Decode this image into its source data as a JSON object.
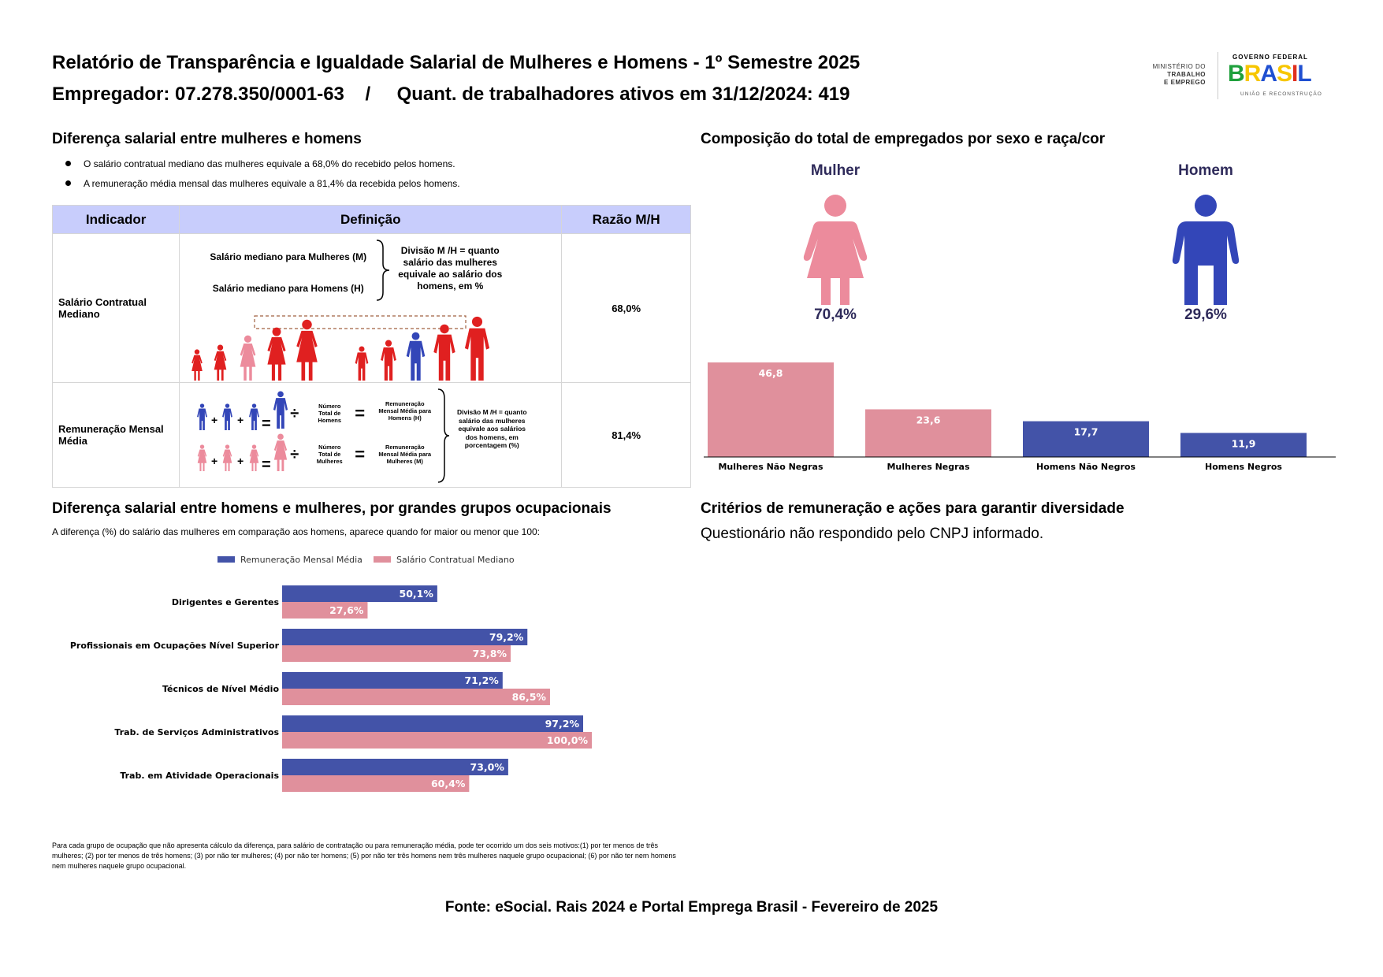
{
  "header": {
    "title": "Relatório de Transparência e Igualdade Salarial de Mulheres e Homens - 1º Semestre 2025",
    "employer": "Empregador: 07.278.350/0001-63    /     Quant. de trabalhadores ativos em 31/12/2024: 419",
    "logo": {
      "ministry_line1": "MINISTÉRIO DO",
      "ministry_line2": "TRABALHO",
      "ministry_line3": "E EMPREGO",
      "gov": "GOVERNO FEDERAL",
      "brand": "BRASIL",
      "tagline": "UNIÃO E RECONSTRUÇÃO"
    }
  },
  "gap_section": {
    "title": "Diferença salarial entre mulheres e homens",
    "bullets": [
      "O salário contratual mediano das mulheres equivale a 68,0% do recebido pelos homens.",
      "A remuneração média mensal das mulheres equivale a 81,4% da recebida pelos homens."
    ],
    "table": {
      "headers": [
        "Indicador",
        "Definição",
        "Razão M/H"
      ],
      "rows": [
        {
          "indicator": "Salário Contratual Mediano",
          "def_women": "Salário mediano para Mulheres (M)",
          "def_men": "Salário mediano para Homens (H)",
          "def_note": "Divisão M /H = quanto salário das mulheres equivale ao salário dos homens, em %",
          "ratio": "68,0%"
        },
        {
          "indicator": "Remuneração Mensal Média",
          "men_total": "Número Total de Homens",
          "men_avg": "Remuneração Mensal Média para Homens (H)",
          "women_total": "Número Total de Mulheres",
          "women_avg": "Remuneração Mensal Média para Mulheres (M)",
          "def_note": "Divisão M /H = quanto salário das mulheres equivale aos salários dos homens, em porcentagem (%)",
          "plus": "+",
          "equals": "=",
          "divide": "÷",
          "ratio": "81,4%"
        }
      ]
    }
  },
  "composition": {
    "title": "Composição do total de empregados por sexo e raça/cor",
    "woman_label": "Mulher",
    "woman_pct": "70,4%",
    "man_label": "Homem",
    "man_pct": "29,6%",
    "colors": {
      "women": "#e0909c",
      "men": "#4353a8",
      "woman_icon": "#ec8b9c",
      "man_icon": "#3346b8"
    }
  },
  "occupational": {
    "title": "Diferença salarial entre homens e mulheres, por grandes grupos ocupacionais",
    "subtitle": "A diferença (%) do salário das mulheres em comparação aos homens, aparece quando for maior ou menor que 100:",
    "footnote": "Para cada grupo de ocupação que não apresenta cálculo da diferença, para salário de contratação ou para remuneração média, pode ter ocorrido um dos seis motivos:(1) por ter menos de três mulheres; (2) por ter menos de três homens; (3) por não ter mulheres; (4) por não ter homens; (5) por não ter três homens nem três mulheres naquele grupo ocupacional; (6) por não ter nem homens nem mulheres naquele grupo ocupacional."
  },
  "criteria": {
    "title": "Critérios de remuneração e ações para garantir diversidade",
    "text": "Questionário não respondido pelo CNPJ informado."
  },
  "footer": {
    "source": "Fonte: eSocial. Rais 2024 e Portal Emprega Brasil - Fevereiro de 2025"
  },
  "chart_data": [
    {
      "type": "bar",
      "title": "",
      "categories": [
        "Mulheres Não Negras",
        "Mulheres Negras",
        "Homens Não Negros",
        "Homens Negros"
      ],
      "values": [
        46.8,
        23.6,
        17.7,
        11.9
      ],
      "labels": [
        "46,8",
        "23,6",
        "17,7",
        "11,9"
      ],
      "colors": [
        "#e0909c",
        "#e0909c",
        "#4353a8",
        "#4353a8"
      ],
      "ylim": [
        0,
        46.8
      ],
      "xlabel": "",
      "ylabel": ""
    },
    {
      "type": "bar",
      "orientation": "horizontal",
      "categories": [
        "Dirigentes e Gerentes",
        "Profissionais em Ocupações Nível Superior",
        "Técnicos de Nível Médio",
        "Trab. de Serviços Administrativos",
        "Trab. em Atividade Operacionais"
      ],
      "series": [
        {
          "name": "Remuneração Mensal Média",
          "color": "#4353a8",
          "values": [
            50.1,
            79.2,
            71.2,
            97.2,
            73.0
          ],
          "labels": [
            "50,1%",
            "79,2%",
            "71,2%",
            "97,2%",
            "73,0%"
          ]
        },
        {
          "name": "Salário Contratual Mediano",
          "color": "#e0909c",
          "values": [
            27.6,
            73.8,
            86.5,
            100.0,
            60.4
          ],
          "labels": [
            "27,6%",
            "73,8%",
            "86,5%",
            "100,0%",
            "60,4%"
          ]
        }
      ],
      "legend": "top",
      "xlim": [
        0,
        100
      ],
      "xlabel": "",
      "ylabel": ""
    }
  ]
}
